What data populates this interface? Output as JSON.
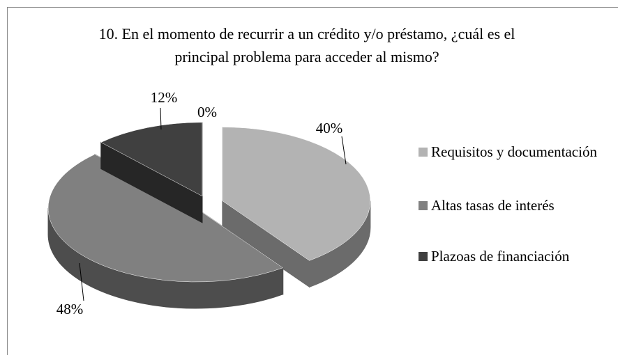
{
  "chart_data": {
    "type": "pie",
    "title": "10. En el momento de recurrir a un crédito y/o préstamo, ¿cuál es el principal problema para acceder al mismo?",
    "categories": [
      "Requisitos y documentación",
      "Altas tasas de interés",
      "Plazoas de financiación",
      null
    ],
    "values": [
      40,
      48,
      12,
      0
    ],
    "value_labels": [
      "40%",
      "48%",
      "12%",
      "0%"
    ],
    "colors": [
      "#b3b3b3",
      "#808080",
      "#404040",
      "#d9d9d9"
    ],
    "three_d": true,
    "exploded": true
  }
}
